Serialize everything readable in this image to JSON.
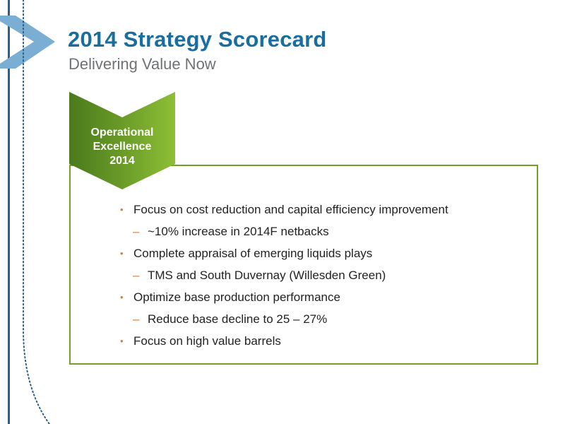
{
  "header": {
    "title": "2014 Strategy Scorecard",
    "subtitle": "Delivering Value Now"
  },
  "badge": {
    "line1": "Operational",
    "line2": "Excellence",
    "line3": "2014"
  },
  "bullets": [
    {
      "marker": "•",
      "text": "Focus on cost reduction and capital efficiency improvement"
    },
    {
      "marker": "–",
      "text": "~10% increase in 2014F netbacks"
    },
    {
      "marker": "•",
      "text": "Complete appraisal of emerging liquids plays"
    },
    {
      "marker": "–",
      "text": "TMS and South Duvernay (Willesden Green)"
    },
    {
      "marker": "•",
      "text": "Optimize base production performance"
    },
    {
      "marker": "–",
      "text": "Reduce base decline to 25 – 27%"
    },
    {
      "marker": "•",
      "text": "Focus on high value barrels"
    }
  ],
  "colors": {
    "title_blue": "#1a6e9f",
    "chevron_blue": "#7aaed3",
    "dotted_line_blue": "#2d5f8e",
    "green": "#74a02a",
    "bullet_orange": "#e07a2e"
  }
}
